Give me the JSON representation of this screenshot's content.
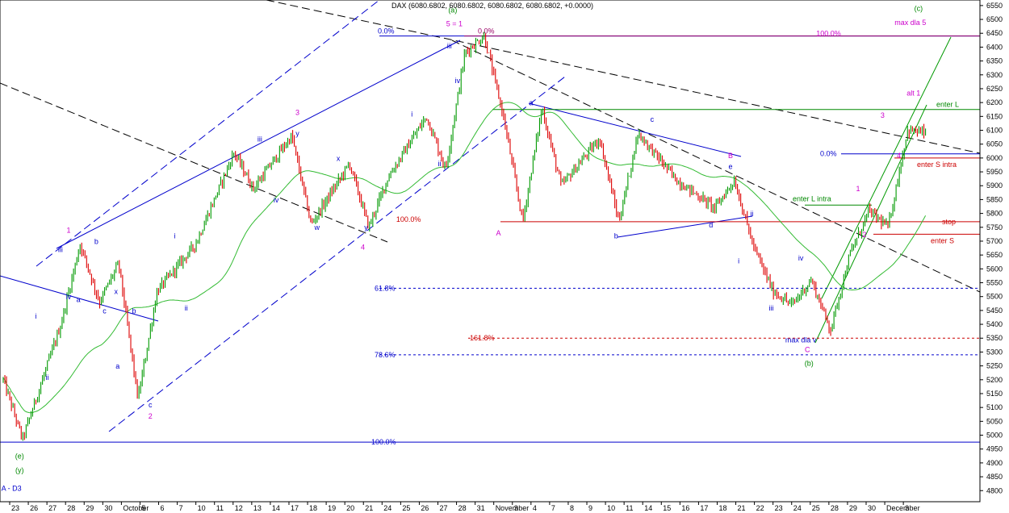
{
  "chart_data": {
    "type": "candlestick",
    "title": "DAX (6080.6802, 6080.6802, 6080.6802, 6080.6802, +0.0000)",
    "y_range": [
      4760,
      6570
    ],
    "y_ticks": [
      4800,
      4850,
      4900,
      4950,
      5000,
      5050,
      5100,
      5150,
      5200,
      5250,
      5300,
      5350,
      5400,
      5450,
      5500,
      5550,
      5600,
      5650,
      5700,
      5750,
      5800,
      5850,
      5900,
      5950,
      6000,
      6050,
      6100,
      6150,
      6200,
      6250,
      6300,
      6350,
      6400,
      6450,
      6500,
      6550
    ],
    "x_axis_labels": [
      {
        "i": 0,
        "text": "23"
      },
      {
        "i": 1,
        "text": "26"
      },
      {
        "i": 2,
        "text": "27"
      },
      {
        "i": 3,
        "text": "28"
      },
      {
        "i": 4,
        "text": "29"
      },
      {
        "i": 5,
        "text": "30"
      },
      {
        "i": 6,
        "text": "October"
      },
      {
        "i": 7,
        "text": "5"
      },
      {
        "i": 8,
        "text": "6"
      },
      {
        "i": 9,
        "text": "7"
      },
      {
        "i": 10,
        "text": "10"
      },
      {
        "i": 11,
        "text": "11"
      },
      {
        "i": 12,
        "text": "12"
      },
      {
        "i": 13,
        "text": "13"
      },
      {
        "i": 14,
        "text": "14"
      },
      {
        "i": 15,
        "text": "17"
      },
      {
        "i": 16,
        "text": "18"
      },
      {
        "i": 17,
        "text": "19"
      },
      {
        "i": 18,
        "text": "20"
      },
      {
        "i": 19,
        "text": "21"
      },
      {
        "i": 20,
        "text": "24"
      },
      {
        "i": 21,
        "text": "25"
      },
      {
        "i": 22,
        "text": "26"
      },
      {
        "i": 23,
        "text": "27"
      },
      {
        "i": 24,
        "text": "28"
      },
      {
        "i": 25,
        "text": "31"
      },
      {
        "i": 26,
        "text": "November"
      },
      {
        "i": 27,
        "text": "3"
      },
      {
        "i": 28,
        "text": "4"
      },
      {
        "i": 29,
        "text": "7"
      },
      {
        "i": 30,
        "text": "8"
      },
      {
        "i": 31,
        "text": "9"
      },
      {
        "i": 32,
        "text": "10"
      },
      {
        "i": 33,
        "text": "11"
      },
      {
        "i": 34,
        "text": "14"
      },
      {
        "i": 35,
        "text": "15"
      },
      {
        "i": 36,
        "text": "16"
      },
      {
        "i": 37,
        "text": "17"
      },
      {
        "i": 38,
        "text": "18"
      },
      {
        "i": 39,
        "text": "21"
      },
      {
        "i": 40,
        "text": "22"
      },
      {
        "i": 41,
        "text": "23"
      },
      {
        "i": 42,
        "text": "24"
      },
      {
        "i": 43,
        "text": "25"
      },
      {
        "i": 44,
        "text": "28"
      },
      {
        "i": 45,
        "text": "29"
      },
      {
        "i": 46,
        "text": "30"
      },
      {
        "i": 47,
        "text": "December"
      },
      {
        "i": 48,
        "text": "3"
      }
    ],
    "x_labels_meta": {
      "first_day_index": 0,
      "days_per_label": 1
    },
    "key_points": [
      {
        "d": 0,
        "v": 5200
      },
      {
        "d": 1,
        "v": 4985
      },
      {
        "d": 3,
        "v": 5400
      },
      {
        "d": 4,
        "v": 5690
      },
      {
        "d": 5,
        "v": 5480
      },
      {
        "d": 6,
        "v": 5620
      },
      {
        "d": 7,
        "v": 5130
      },
      {
        "d": 8,
        "v": 5520
      },
      {
        "d": 10,
        "v": 5690
      },
      {
        "d": 12,
        "v": 6020
      },
      {
        "d": 13,
        "v": 5890
      },
      {
        "d": 15,
        "v": 6080
      },
      {
        "d": 16,
        "v": 5760
      },
      {
        "d": 18,
        "v": 5980
      },
      {
        "d": 19,
        "v": 5750
      },
      {
        "d": 20,
        "v": 5930
      },
      {
        "d": 22,
        "v": 6150
      },
      {
        "d": 23,
        "v": 5960
      },
      {
        "d": 24,
        "v": 6380
      },
      {
        "d": 25,
        "v": 6440
      },
      {
        "d": 26,
        "v": 6150
      },
      {
        "d": 27,
        "v": 5770
      },
      {
        "d": 28,
        "v": 6180
      },
      {
        "d": 29,
        "v": 5900
      },
      {
        "d": 31,
        "v": 6070
      },
      {
        "d": 32,
        "v": 5770
      },
      {
        "d": 33,
        "v": 6090
      },
      {
        "d": 35,
        "v": 5920
      },
      {
        "d": 37,
        "v": 5820
      },
      {
        "d": 38,
        "v": 5920
      },
      {
        "d": 39,
        "v": 5680
      },
      {
        "d": 40,
        "v": 5520
      },
      {
        "d": 41,
        "v": 5470
      },
      {
        "d": 42,
        "v": 5560
      },
      {
        "d": 43,
        "v": 5380
      },
      {
        "d": 44,
        "v": 5650
      },
      {
        "d": 45,
        "v": 5810
      },
      {
        "d": 46,
        "v": 5750
      },
      {
        "d": 47,
        "v": 6100
      },
      {
        "d": 48,
        "v": 6090
      }
    ],
    "levels": [
      {
        "v": 6440,
        "color": "#0000cc",
        "label": "0.0%",
        "style": "solid"
      },
      {
        "v": 6440,
        "color": "#990066",
        "label": "0.0%",
        "style": "solid"
      },
      {
        "v": 6175,
        "color": "#008800",
        "label": "enter L",
        "style": "solid"
      },
      {
        "v": 6015,
        "color": "#0000cc",
        "label": "0.0%",
        "style": "solid"
      },
      {
        "v": 6000,
        "color": "#cc0000",
        "label": "enter S intra",
        "style": "solid"
      },
      {
        "v": 5830,
        "color": "#008800",
        "label": "enter L intra",
        "style": "solid"
      },
      {
        "v": 5770,
        "color": "#cc0000",
        "label": "stop",
        "style": "solid"
      },
      {
        "v": 5725,
        "color": "#cc0000",
        "label": "enter S",
        "style": "solid"
      },
      {
        "v": 5530,
        "color": "#0000cc",
        "label": "61.8%",
        "style": "dashed"
      },
      {
        "v": 5350,
        "color": "#cc0000",
        "label": "161.8%",
        "style": "dashed"
      },
      {
        "v": 5290,
        "color": "#0000cc",
        "label": "78.6%",
        "style": "dashed"
      },
      {
        "v": 4975,
        "color": "#0000cc",
        "label": "100.0%",
        "style": "solid"
      }
    ],
    "annotations": [
      {
        "text": "(a)",
        "d": 27.5,
        "v": 6525,
        "color": "#008800"
      },
      {
        "text": "5 = 1",
        "d": 27.6,
        "v": 6475,
        "color": "#cc00cc"
      },
      {
        "text": "100.0%",
        "d": 24.8,
        "v": 5770,
        "color": "#cc0000"
      },
      {
        "text": "100.0%",
        "d": 50.5,
        "v": 6440,
        "color": "#cc00cc"
      },
      {
        "text": "(c)",
        "d": 56.0,
        "v": 6530,
        "color": "#008800"
      },
      {
        "text": "max dla 5",
        "d": 55.5,
        "v": 6480,
        "color": "#cc00cc"
      },
      {
        "text": "alt 1",
        "d": 55.7,
        "v": 6225,
        "color": "#cc00cc"
      },
      {
        "text": "3",
        "d": 53.8,
        "v": 6145,
        "color": "#cc00cc"
      },
      {
        "text": "4",
        "d": 54.8,
        "v": 6000,
        "color": "#cc00cc"
      },
      {
        "text": "1",
        "d": 52.3,
        "v": 5880,
        "color": "#cc00cc"
      },
      {
        "text": "2",
        "d": 52.7,
        "v": 5715,
        "color": "#cc00cc"
      },
      {
        "text": "max dla v",
        "d": 48.8,
        "v": 5335,
        "color": "#0000cc"
      },
      {
        "text": "C",
        "d": 49.2,
        "v": 5300,
        "color": "#cc00cc"
      },
      {
        "text": "(b)",
        "d": 49.3,
        "v": 5250,
        "color": "#008800"
      },
      {
        "text": "B",
        "d": 44.5,
        "v": 6000,
        "color": "#cc00cc"
      },
      {
        "text": "e",
        "d": 44.5,
        "v": 5960,
        "color": "#0000cc"
      },
      {
        "text": "A",
        "d": 30.3,
        "v": 5720,
        "color": "#cc00cc"
      },
      {
        "text": "a",
        "d": 32.3,
        "v": 6190,
        "color": "#0000cc"
      },
      {
        "text": "b",
        "d": 37.5,
        "v": 5710,
        "color": "#0000cc"
      },
      {
        "text": "c",
        "d": 39.7,
        "v": 6130,
        "color": "#0000cc"
      },
      {
        "text": "d",
        "d": 43.3,
        "v": 5750,
        "color": "#0000cc"
      },
      {
        "text": "i",
        "d": 45.0,
        "v": 5620,
        "color": "#0000cc"
      },
      {
        "text": "ii",
        "d": 45.8,
        "v": 5790,
        "color": "#0000cc"
      },
      {
        "text": "iii",
        "d": 47.0,
        "v": 5450,
        "color": "#0000cc"
      },
      {
        "text": "iv",
        "d": 48.8,
        "v": 5630,
        "color": "#0000cc"
      },
      {
        "text": "i",
        "d": 25.0,
        "v": 6150,
        "color": "#0000cc"
      },
      {
        "text": "ii",
        "d": 26.7,
        "v": 5970,
        "color": "#0000cc"
      },
      {
        "text": "iii",
        "d": 27.3,
        "v": 6395,
        "color": "#0000cc"
      },
      {
        "text": "iv",
        "d": 27.8,
        "v": 6270,
        "color": "#0000cc"
      },
      {
        "text": "3",
        "d": 18.0,
        "v": 6155,
        "color": "#cc00cc"
      },
      {
        "text": "y",
        "d": 18.0,
        "v": 6080,
        "color": "#0000cc"
      },
      {
        "text": "iii",
        "d": 15.7,
        "v": 6060,
        "color": "#0000cc"
      },
      {
        "text": "x",
        "d": 20.5,
        "v": 5990,
        "color": "#0000cc"
      },
      {
        "text": "iv",
        "d": 16.7,
        "v": 5840,
        "color": "#0000cc"
      },
      {
        "text": "w",
        "d": 19.2,
        "v": 5740,
        "color": "#0000cc"
      },
      {
        "text": "y",
        "d": 22.2,
        "v": 5740,
        "color": "#0000cc"
      },
      {
        "text": "4",
        "d": 22.0,
        "v": 5670,
        "color": "#cc00cc"
      },
      {
        "text": "i",
        "d": 10.5,
        "v": 5710,
        "color": "#0000cc"
      },
      {
        "text": "ii",
        "d": 11.2,
        "v": 5450,
        "color": "#0000cc"
      },
      {
        "text": "1",
        "d": 4.0,
        "v": 5730,
        "color": "#cc00cc"
      },
      {
        "text": "iii",
        "d": 3.5,
        "v": 5660,
        "color": "#0000cc"
      },
      {
        "text": "b",
        "d": 5.7,
        "v": 5690,
        "color": "#0000cc"
      },
      {
        "text": "iv",
        "d": 4.0,
        "v": 5490,
        "color": "#0000cc"
      },
      {
        "text": "a",
        "d": 4.6,
        "v": 5480,
        "color": "#0000cc"
      },
      {
        "text": "x",
        "d": 6.9,
        "v": 5510,
        "color": "#0000cc"
      },
      {
        "text": "c",
        "d": 6.2,
        "v": 5440,
        "color": "#0000cc"
      },
      {
        "text": "b",
        "d": 8.0,
        "v": 5440,
        "color": "#0000cc"
      },
      {
        "text": "a",
        "d": 7.0,
        "v": 5240,
        "color": "#0000cc"
      },
      {
        "text": "c",
        "d": 9.0,
        "v": 5100,
        "color": "#0000cc"
      },
      {
        "text": "2",
        "d": 9.0,
        "v": 5060,
        "color": "#cc00cc"
      },
      {
        "text": "i",
        "d": 2.0,
        "v": 5420,
        "color": "#0000cc"
      },
      {
        "text": "ii",
        "d": 2.7,
        "v": 5200,
        "color": "#0000cc"
      },
      {
        "text": "(e)",
        "d": 1.0,
        "v": 4915,
        "color": "#008800"
      },
      {
        "text": "(y)",
        "d": 1.0,
        "v": 4865,
        "color": "#008800"
      },
      {
        "text": "A - D3",
        "d": 0.5,
        "v": 4800,
        "color": "#0000cc"
      }
    ]
  }
}
